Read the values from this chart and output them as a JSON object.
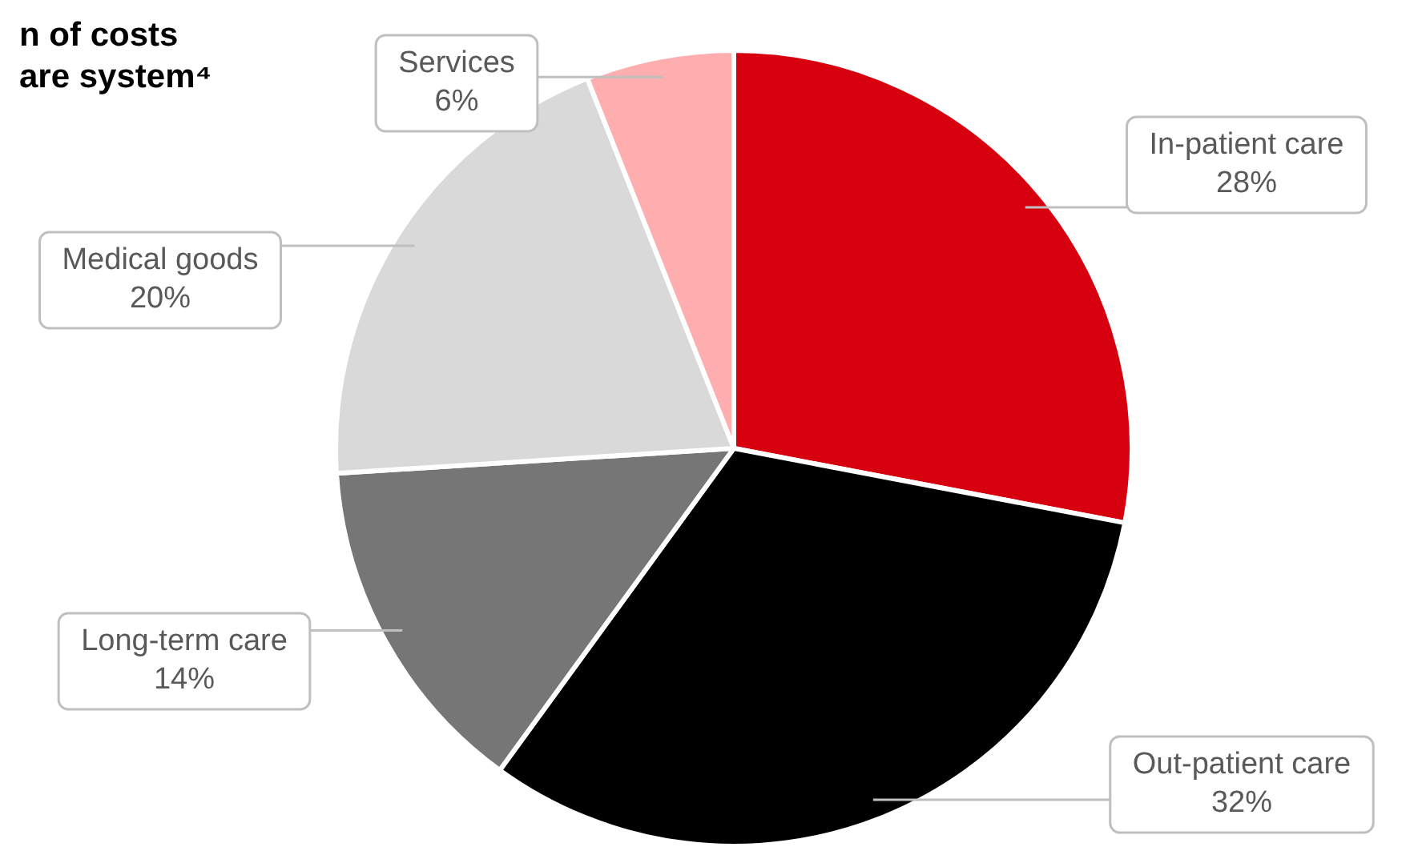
{
  "chart_data": {
    "type": "pie",
    "title": "n of costs\nare system⁴",
    "categories": [
      "In-patient care",
      "Out-patient care",
      "Long-term care",
      "Medical goods",
      "Services"
    ],
    "values": [
      28,
      32,
      14,
      20,
      6
    ],
    "value_labels": [
      "28%",
      "32%",
      "14%",
      "20%",
      "6%"
    ],
    "colors": [
      "#d7000f",
      "#000000",
      "#767676",
      "#d9d9d9",
      "#ffaeb0"
    ]
  }
}
